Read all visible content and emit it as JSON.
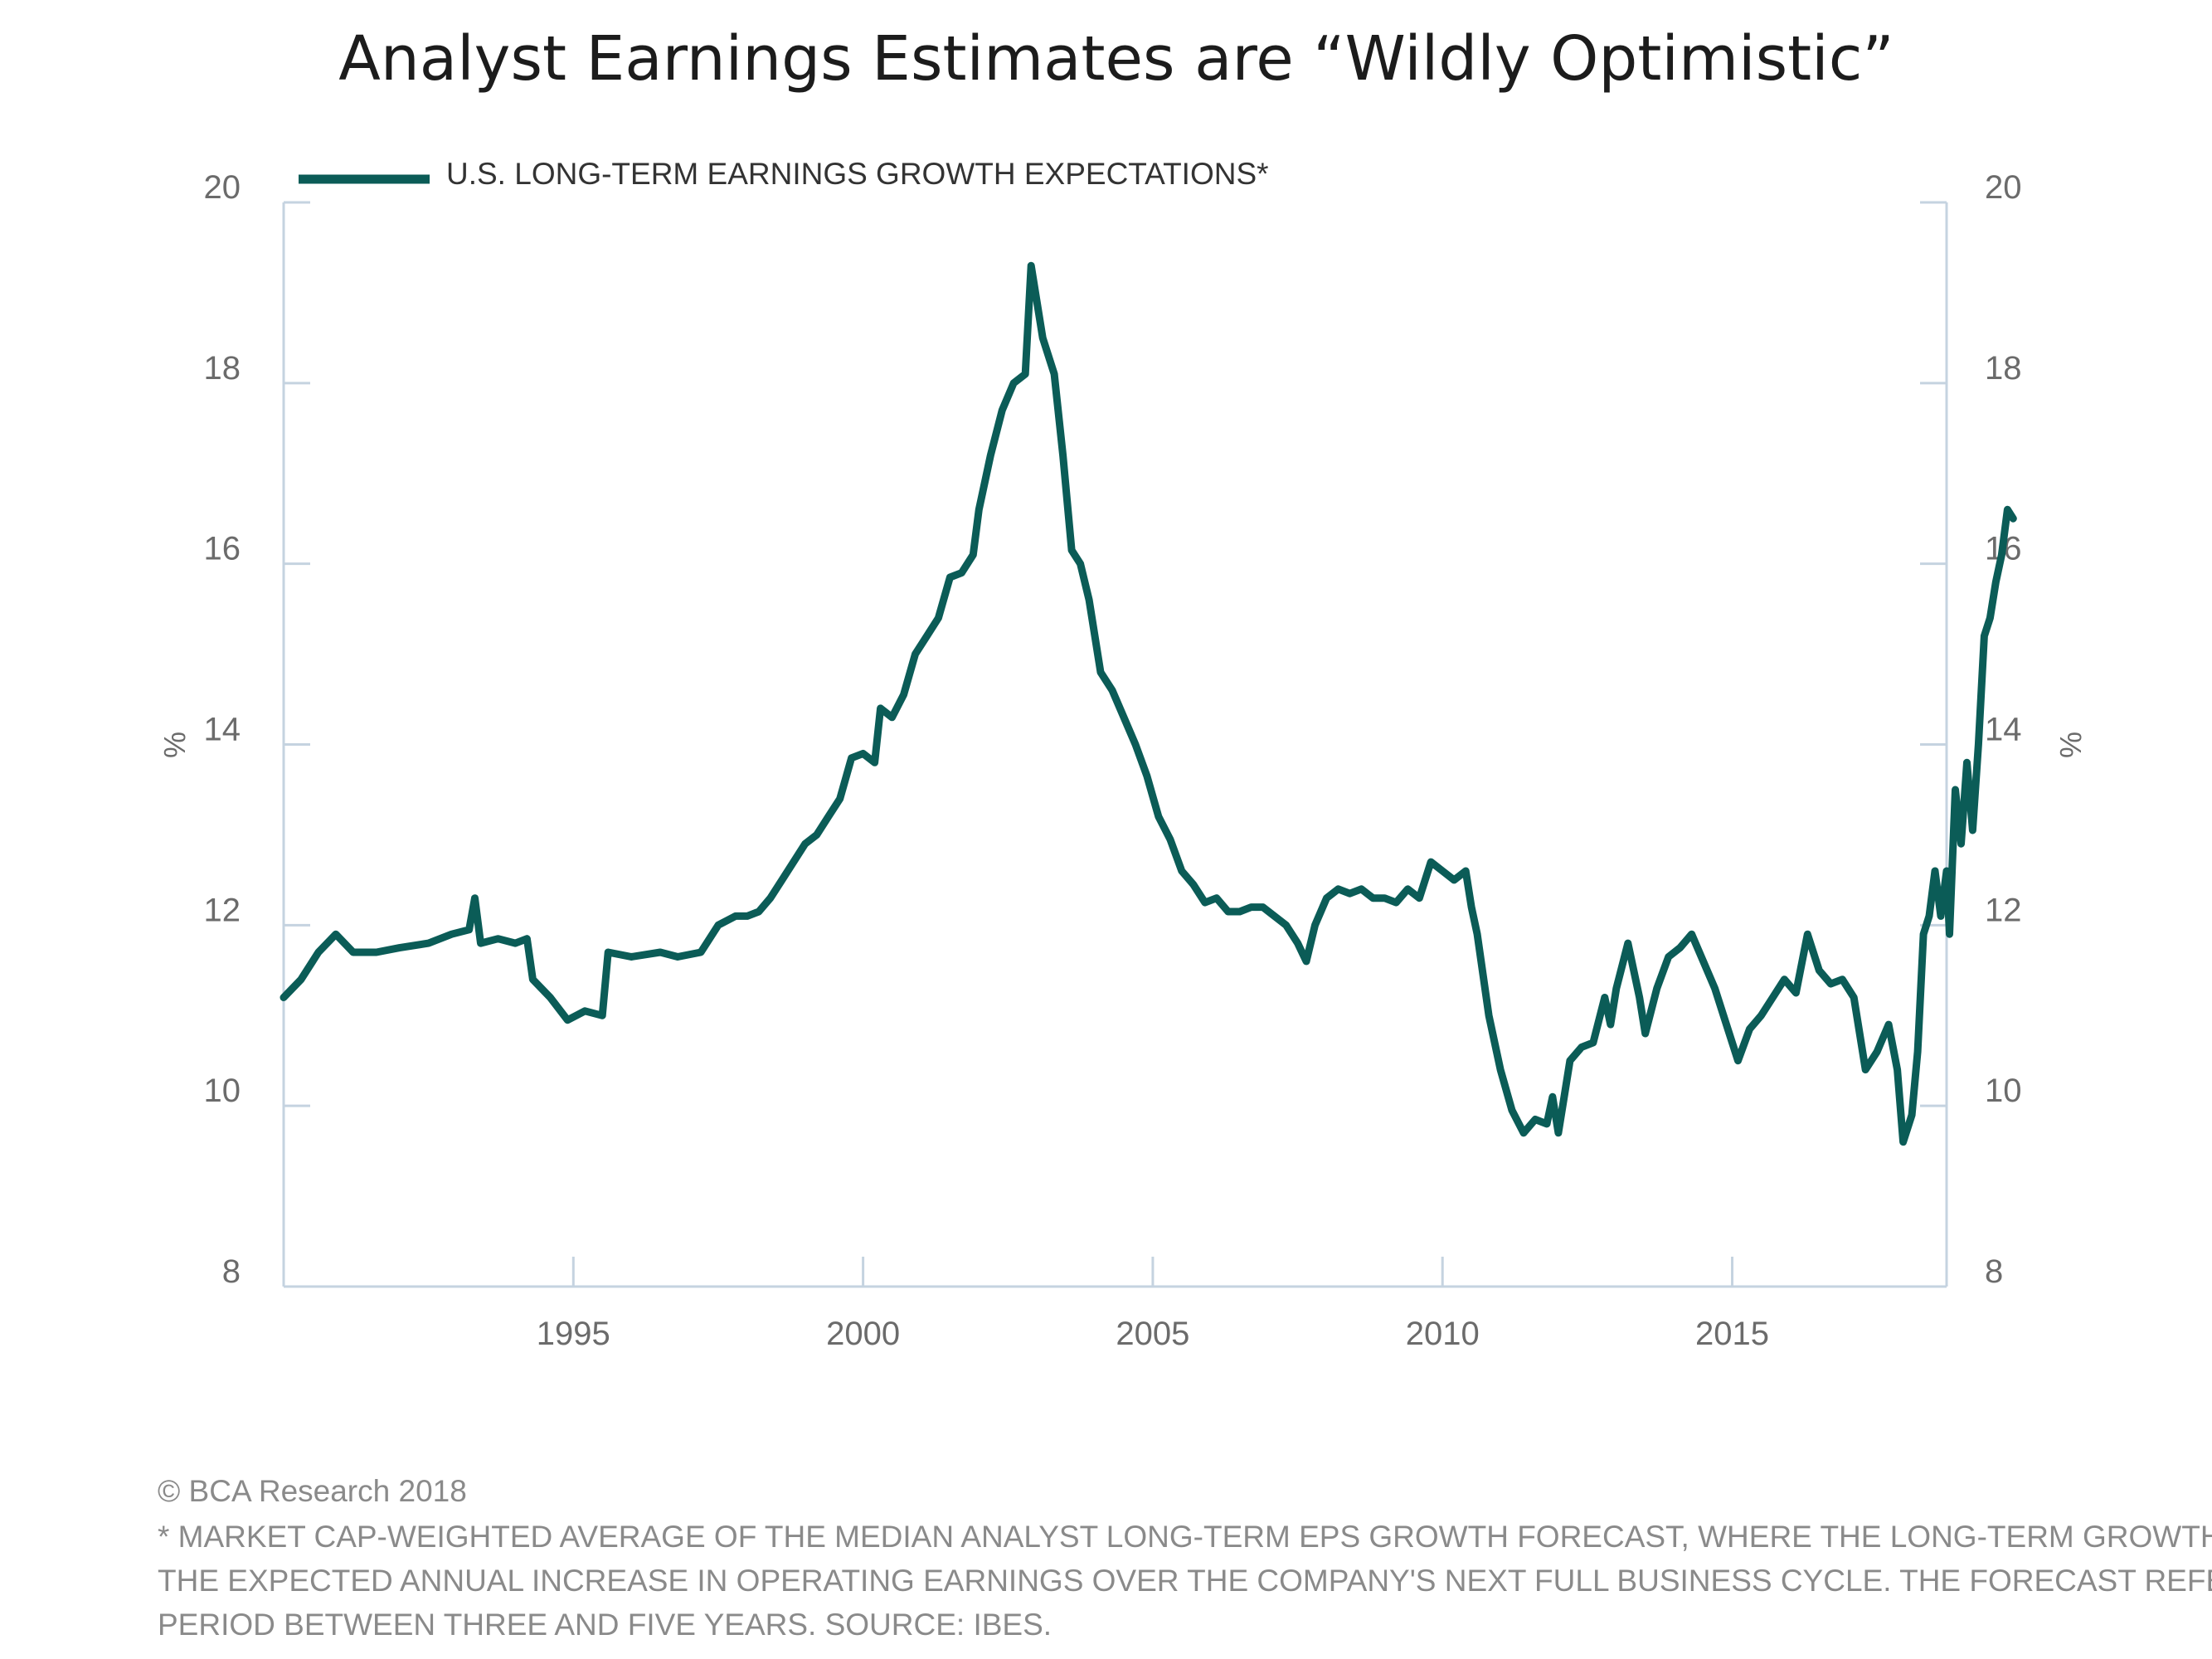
{
  "chart_data": {
    "type": "line",
    "title": "Analyst Earnings Estimates are “Wildly Optimistic”",
    "ylabel_left": "%",
    "ylabel_right": "%",
    "ylim": [
      8,
      20
    ],
    "yticks": [
      8,
      10,
      12,
      14,
      16,
      18,
      20
    ],
    "xlim": [
      1990.0,
      2018.7
    ],
    "xticks": [
      1995,
      2000,
      2005,
      2010,
      2015
    ],
    "grid": false,
    "legend_placement": "top-left",
    "colors": {
      "series": "#0b5c57",
      "axis": "#c5d3e0"
    },
    "series": [
      {
        "name": "U.S. LONG-TERM EARNINGS GROWTH EXPECTATIONS*",
        "points": [
          [
            1990.0,
            11.2
          ],
          [
            1990.3,
            11.4
          ],
          [
            1990.6,
            11.7
          ],
          [
            1990.9,
            11.9
          ],
          [
            1991.2,
            11.7
          ],
          [
            1991.6,
            11.7
          ],
          [
            1992.0,
            11.75
          ],
          [
            1992.5,
            11.8
          ],
          [
            1992.9,
            11.9
          ],
          [
            1993.2,
            11.95
          ],
          [
            1993.3,
            12.3
          ],
          [
            1993.4,
            11.8
          ],
          [
            1993.7,
            11.85
          ],
          [
            1994.0,
            11.8
          ],
          [
            1994.2,
            11.85
          ],
          [
            1994.3,
            11.4
          ],
          [
            1994.6,
            11.2
          ],
          [
            1994.9,
            10.95
          ],
          [
            1995.2,
            11.05
          ],
          [
            1995.5,
            11.0
          ],
          [
            1995.6,
            11.7
          ],
          [
            1996.0,
            11.65
          ],
          [
            1996.5,
            11.7
          ],
          [
            1996.8,
            11.65
          ],
          [
            1997.2,
            11.7
          ],
          [
            1997.5,
            12.0
          ],
          [
            1997.8,
            12.1
          ],
          [
            1998.0,
            12.1
          ],
          [
            1998.2,
            12.15
          ],
          [
            1998.4,
            12.3
          ],
          [
            1998.6,
            12.5
          ],
          [
            1998.8,
            12.7
          ],
          [
            1999.0,
            12.9
          ],
          [
            1999.2,
            13.0
          ],
          [
            1999.4,
            13.2
          ],
          [
            1999.6,
            13.4
          ],
          [
            1999.8,
            13.85
          ],
          [
            2000.0,
            13.9
          ],
          [
            2000.2,
            13.8
          ],
          [
            2000.3,
            14.4
          ],
          [
            2000.5,
            14.3
          ],
          [
            2000.7,
            14.55
          ],
          [
            2000.9,
            15.0
          ],
          [
            2001.1,
            15.2
          ],
          [
            2001.3,
            15.4
          ],
          [
            2001.5,
            15.85
          ],
          [
            2001.7,
            15.9
          ],
          [
            2001.9,
            16.1
          ],
          [
            2002.0,
            16.6
          ],
          [
            2002.2,
            17.2
          ],
          [
            2002.4,
            17.7
          ],
          [
            2002.6,
            18.0
          ],
          [
            2002.8,
            18.1
          ],
          [
            2002.9,
            19.3
          ],
          [
            2003.1,
            18.5
          ],
          [
            2003.3,
            18.1
          ],
          [
            2003.45,
            17.2
          ],
          [
            2003.6,
            16.15
          ],
          [
            2003.75,
            16.0
          ],
          [
            2003.9,
            15.6
          ],
          [
            2004.1,
            14.8
          ],
          [
            2004.3,
            14.6
          ],
          [
            2004.5,
            14.3
          ],
          [
            2004.7,
            14.0
          ],
          [
            2004.9,
            13.65
          ],
          [
            2005.1,
            13.2
          ],
          [
            2005.3,
            12.95
          ],
          [
            2005.5,
            12.6
          ],
          [
            2005.7,
            12.45
          ],
          [
            2005.9,
            12.25
          ],
          [
            2006.1,
            12.3
          ],
          [
            2006.3,
            12.15
          ],
          [
            2006.5,
            12.15
          ],
          [
            2006.7,
            12.2
          ],
          [
            2006.9,
            12.2
          ],
          [
            2007.1,
            12.1
          ],
          [
            2007.3,
            12.0
          ],
          [
            2007.5,
            11.8
          ],
          [
            2007.65,
            11.6
          ],
          [
            2007.8,
            12.0
          ],
          [
            2008.0,
            12.3
          ],
          [
            2008.2,
            12.4
          ],
          [
            2008.4,
            12.35
          ],
          [
            2008.6,
            12.4
          ],
          [
            2008.8,
            12.3
          ],
          [
            2009.0,
            12.3
          ],
          [
            2009.2,
            12.25
          ],
          [
            2009.4,
            12.4
          ],
          [
            2009.6,
            12.3
          ],
          [
            2009.8,
            12.7
          ],
          [
            2010.0,
            12.6
          ],
          [
            2010.2,
            12.5
          ],
          [
            2010.4,
            12.6
          ],
          [
            2010.5,
            12.2
          ],
          [
            2010.6,
            11.9
          ],
          [
            2010.8,
            11.0
          ],
          [
            2011.0,
            10.4
          ],
          [
            2011.2,
            9.95
          ],
          [
            2011.4,
            9.7
          ],
          [
            2011.6,
            9.85
          ],
          [
            2011.8,
            9.8
          ],
          [
            2011.9,
            10.1
          ],
          [
            2012.0,
            9.7
          ],
          [
            2012.1,
            10.1
          ],
          [
            2012.2,
            10.5
          ],
          [
            2012.4,
            10.65
          ],
          [
            2012.6,
            10.7
          ],
          [
            2012.8,
            11.2
          ],
          [
            2012.9,
            10.9
          ],
          [
            2013.0,
            11.3
          ],
          [
            2013.2,
            11.8
          ],
          [
            2013.4,
            11.2
          ],
          [
            2013.5,
            10.8
          ],
          [
            2013.7,
            11.3
          ],
          [
            2013.9,
            11.65
          ],
          [
            2014.1,
            11.75
          ],
          [
            2014.3,
            11.9
          ],
          [
            2014.5,
            11.6
          ],
          [
            2014.7,
            11.3
          ],
          [
            2014.9,
            10.9
          ],
          [
            2015.1,
            10.5
          ],
          [
            2015.3,
            10.85
          ],
          [
            2015.5,
            11.0
          ],
          [
            2015.7,
            11.2
          ],
          [
            2015.9,
            11.4
          ],
          [
            2016.1,
            11.25
          ],
          [
            2016.3,
            11.9
          ],
          [
            2016.5,
            11.5
          ],
          [
            2016.7,
            11.35
          ],
          [
            2016.9,
            11.4
          ],
          [
            2017.1,
            11.2
          ],
          [
            2017.3,
            10.4
          ],
          [
            2017.5,
            10.6
          ],
          [
            2017.7,
            10.9
          ],
          [
            2017.85,
            10.4
          ],
          [
            2017.95,
            9.6
          ],
          [
            2018.1,
            9.9
          ],
          [
            2018.2,
            10.6
          ],
          [
            2018.3,
            11.9
          ],
          [
            2018.4,
            12.1
          ],
          [
            2018.5,
            12.6
          ],
          [
            2018.6,
            12.1
          ],
          [
            2018.7,
            12.6
          ],
          [
            2018.75,
            11.9
          ],
          [
            2018.85,
            13.5
          ],
          [
            2018.95,
            12.9
          ],
          [
            2019.05,
            13.8
          ],
          [
            2019.15,
            13.05
          ],
          [
            2019.25,
            14.0
          ],
          [
            2019.35,
            15.2
          ],
          [
            2019.45,
            15.4
          ],
          [
            2019.55,
            15.8
          ],
          [
            2019.65,
            16.1
          ],
          [
            2019.75,
            16.6
          ],
          [
            2019.85,
            16.5
          ]
        ]
      }
    ]
  },
  "footer": {
    "copyright": "© BCA Research 2018",
    "note_lines": [
      "* MARKET CAP-WEIGHTED AVERAGE OF THE MEDIAN ANALYST LONG-TERM EPS GROWTH FORECAST, WHERE THE LONG-TERM GROWTH RATE IS",
      "THE EXPECTED ANNUAL INCREASE IN OPERATING EARNINGS OVER THE COMPANY'S NEXT FULL BUSINESS CYCLE. THE FORECAST REFERS TO A",
      "PERIOD BETWEEN THREE AND FIVE YEARS. SOURCE: IBES."
    ]
  }
}
